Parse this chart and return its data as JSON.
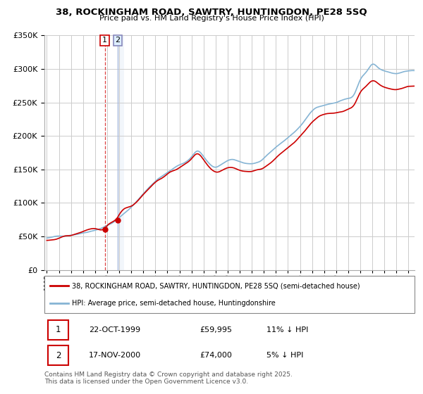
{
  "title": "38, ROCKINGHAM ROAD, SAWTRY, HUNTINGDON, PE28 5SQ",
  "subtitle": "Price paid vs. HM Land Registry's House Price Index (HPI)",
  "legend_line1": "38, ROCKINGHAM ROAD, SAWTRY, HUNTINGDON, PE28 5SQ (semi-detached house)",
  "legend_line2": "HPI: Average price, semi-detached house, Huntingdonshire",
  "footer": "Contains HM Land Registry data © Crown copyright and database right 2025.\nThis data is licensed under the Open Government Licence v3.0.",
  "transactions": [
    {
      "num": 1,
      "date": "22-OCT-1999",
      "price": "£59,995",
      "hpi_diff": "11% ↓ HPI",
      "year": 1999.81,
      "price_val": 59995
    },
    {
      "num": 2,
      "date": "17-NOV-2000",
      "price": "£74,000",
      "hpi_diff": "5% ↓ HPI",
      "year": 2000.88,
      "price_val": 74000
    }
  ],
  "red_color": "#cc0000",
  "blue_color": "#85b4d4",
  "t1_vline_color": "#dd4444",
  "t2_fill_color": "#ccddf0",
  "ylim": [
    0,
    350000
  ],
  "xlim_start": 1994.8,
  "xlim_end": 2025.5,
  "grid_color": "#cccccc",
  "transaction_box1_color": "#cc0000",
  "transaction_box2_color": "#8888bb"
}
